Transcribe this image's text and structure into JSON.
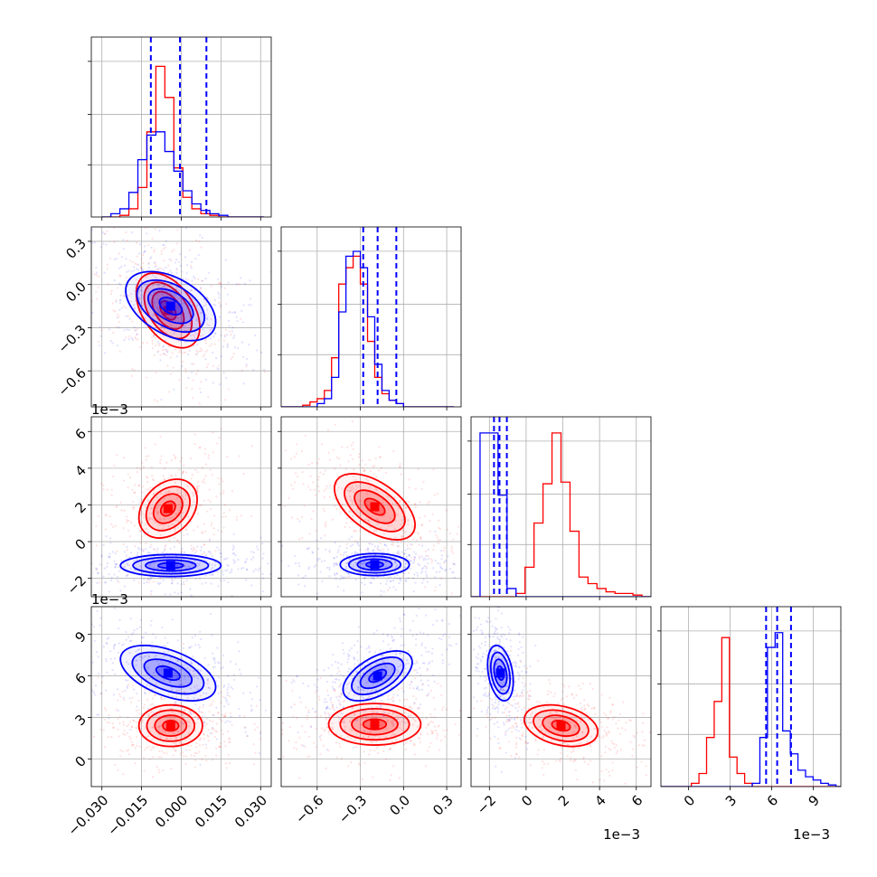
{
  "colors": {
    "blue": "#0000ff",
    "red": "#ff0000",
    "grid": "#b0b0b0",
    "frame": "#000000"
  },
  "chart_data": {
    "type": "corner",
    "parameters": 4,
    "series": [
      {
        "color": "blue",
        "quantiles_marked": true
      },
      {
        "color": "red",
        "quantiles_marked": false
      }
    ],
    "axes": [
      {
        "range": [
          -0.034,
          0.034
        ],
        "ticks": [
          -0.03,
          -0.015,
          0.0,
          0.015,
          0.03
        ],
        "tick_labels": [
          "−0.030",
          "−0.015",
          "0.000",
          "0.015",
          "0.030"
        ],
        "offset": ""
      },
      {
        "range": [
          -0.85,
          0.4
        ],
        "ticks": [
          -0.6,
          -0.3,
          0.0,
          0.3
        ],
        "tick_labels": [
          "−0.6",
          "−0.3",
          "0.0",
          "0.3"
        ],
        "offset": ""
      },
      {
        "range": [
          -3.0,
          6.8
        ],
        "ticks": [
          -2,
          0,
          2,
          4,
          6
        ],
        "tick_labels": [
          "−2",
          "0",
          "2",
          "4",
          "6"
        ],
        "offset": "1e−3"
      },
      {
        "range": [
          -2.0,
          11.0
        ],
        "ticks": [
          0,
          3,
          6,
          9
        ],
        "tick_labels": [
          "0",
          "3",
          "6",
          "9"
        ],
        "offset": "1e−3"
      }
    ],
    "hist1d": [
      {
        "edges_from": -0.03,
        "bin_width": 0.0034,
        "peak": 1.0,
        "blue": [
          0,
          0.02,
          0.05,
          0.15,
          0.35,
          0.5,
          0.52,
          0.4,
          0.28,
          0.16,
          0.08,
          0.04,
          0.02,
          0.01,
          0,
          0,
          0,
          0
        ],
        "red": [
          0,
          0,
          0.01,
          0.05,
          0.18,
          0.52,
          0.92,
          0.73,
          0.3,
          0.12,
          0.05,
          0.02,
          0.01,
          0,
          0,
          0,
          0,
          0
        ],
        "blue_quantiles": [
          -0.0115,
          -0.0005,
          0.0095
        ]
      },
      {
        "edges_from": -0.85,
        "bin_width": 0.05,
        "peak": 1.0,
        "blue": [
          0,
          0,
          0,
          0,
          0,
          0.02,
          0.05,
          0.18,
          0.58,
          0.92,
          0.95,
          0.85,
          0.55,
          0.26,
          0.1,
          0.04,
          0.02,
          0,
          0,
          0,
          0,
          0,
          0,
          0
        ],
        "red": [
          0,
          0,
          0,
          0.01,
          0.03,
          0.05,
          0.1,
          0.3,
          0.75,
          0.85,
          0.92,
          0.75,
          0.4,
          0.18,
          0.08,
          0.04,
          0.02,
          0,
          0,
          0,
          0,
          0,
          0,
          0
        ],
        "blue_quantiles": [
          -0.28,
          -0.18,
          -0.05
        ]
      },
      {
        "edges_from": -3.0,
        "bin_width": 0.49,
        "peak": 1.0,
        "blue": [
          0,
          1.0,
          1.0,
          0.62,
          0.05,
          0,
          0,
          0,
          0,
          0,
          0,
          0,
          0,
          0,
          0,
          0,
          0,
          0,
          0,
          0
        ],
        "red": [
          0,
          0,
          0,
          0,
          0,
          0.02,
          0.18,
          0.45,
          0.69,
          1.0,
          0.7,
          0.4,
          0.12,
          0.08,
          0.05,
          0.03,
          0.02,
          0.02,
          0.01,
          0
        ],
        "blue_quantiles": [
          -1.75,
          -1.45,
          -1.05
        ]
      },
      {
        "edges_from": -2.0,
        "bin_width": 0.55,
        "peak": 1.0,
        "blue": [
          0,
          0,
          0,
          0,
          0,
          0,
          0,
          0,
          0,
          0,
          0,
          0,
          0.02,
          0.3,
          0.85,
          0.94,
          0.34,
          0.2,
          0.1,
          0.06,
          0.04,
          0.02,
          0.01,
          0
        ],
        "red": [
          0,
          0,
          0,
          0,
          0.02,
          0.08,
          0.3,
          0.52,
          0.91,
          0.18,
          0.08,
          0.02,
          0,
          0,
          0,
          0,
          0,
          0,
          0,
          0,
          0,
          0,
          0,
          0
        ],
        "blue_quantiles": [
          5.6,
          6.4,
          7.4
        ]
      }
    ],
    "pair_2d": [
      {
        "i": 1,
        "j": 0,
        "blue": {
          "center": [
            -0.004,
            -0.15
          ],
          "sd": [
            0.0085,
            0.12
          ],
          "rho": -0.45
        },
        "red": {
          "center": [
            -0.005,
            -0.18
          ],
          "sd": [
            0.006,
            0.13
          ],
          "rho": -0.45
        }
      },
      {
        "i": 2,
        "j": 0,
        "blue": {
          "center": [
            -0.004,
            -1.3
          ],
          "sd": [
            0.0095,
            0.3
          ],
          "rho": 0.0
        },
        "red": {
          "center": [
            -0.005,
            1.8
          ],
          "sd": [
            0.0055,
            0.8
          ],
          "rho": 0.3
        }
      },
      {
        "i": 2,
        "j": 1,
        "blue": {
          "center": [
            -0.2,
            -1.25
          ],
          "sd": [
            0.12,
            0.3
          ],
          "rho": 0.0
        },
        "red": {
          "center": [
            -0.2,
            1.9
          ],
          "sd": [
            0.14,
            0.9
          ],
          "rho": -0.55
        }
      },
      {
        "i": 3,
        "j": 0,
        "blue": {
          "center": [
            -0.005,
            6.2
          ],
          "sd": [
            0.009,
            1.0
          ],
          "rho": -0.5
        },
        "red": {
          "center": [
            -0.004,
            2.4
          ],
          "sd": [
            0.006,
            0.75
          ],
          "rho": 0.0
        }
      },
      {
        "i": 3,
        "j": 1,
        "blue": {
          "center": [
            -0.18,
            6.0
          ],
          "sd": [
            0.12,
            0.9
          ],
          "rho": 0.55
        },
        "red": {
          "center": [
            -0.2,
            2.5
          ],
          "sd": [
            0.16,
            0.75
          ],
          "rho": 0.0
        }
      },
      {
        "i": 3,
        "j": 2,
        "blue": {
          "center": [
            -1.4,
            6.2
          ],
          "sd": [
            0.35,
            1.0
          ],
          "rho": -0.3
        },
        "red": {
          "center": [
            1.9,
            2.4
          ],
          "sd": [
            1.0,
            0.75
          ],
          "rho": -0.3
        }
      }
    ],
    "contour_levels_sigma": [
      0.5,
      1.0,
      1.5,
      2.0
    ]
  }
}
